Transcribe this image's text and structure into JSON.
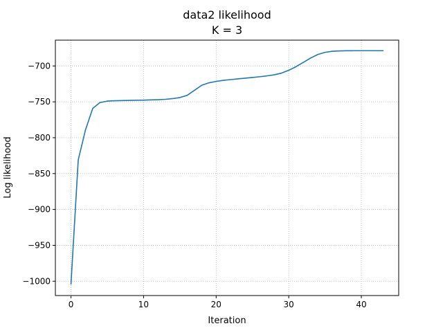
{
  "chart_data": {
    "type": "line",
    "title": "data2 likelihood",
    "subtitle": "K = 3",
    "xlabel": "Iteration",
    "ylabel": "Log likelihood",
    "xlim": [
      -2.15,
      45.15
    ],
    "ylim": [
      -1020,
      -664
    ],
    "xticks": [
      0,
      10,
      20,
      30,
      40
    ],
    "yticks": [
      -1000,
      -950,
      -900,
      -850,
      -800,
      -750,
      -700
    ],
    "xtick_labels": [
      "0",
      "10",
      "20",
      "30",
      "40"
    ],
    "ytick_labels": [
      "−1000",
      "−950",
      "−900",
      "−850",
      "−800",
      "−750",
      "−700"
    ],
    "grid": true,
    "series": [
      {
        "color": "#1f77b4",
        "x": [
          0,
          1,
          2,
          3,
          4,
          5,
          6,
          7,
          8,
          9,
          10,
          11,
          12,
          13,
          14,
          15,
          16,
          17,
          18,
          19,
          20,
          21,
          22,
          23,
          24,
          25,
          26,
          27,
          28,
          29,
          30,
          31,
          32,
          33,
          34,
          35,
          36,
          37,
          38,
          39,
          40,
          41,
          42,
          43
        ],
        "y": [
          -1004,
          -831,
          -789,
          -759,
          -751,
          -749,
          -748.5,
          -748.2,
          -748,
          -747.8,
          -747.6,
          -747.3,
          -747,
          -746.5,
          -745.5,
          -744,
          -741,
          -734,
          -727,
          -723.5,
          -721.5,
          -720,
          -719,
          -718,
          -717,
          -716,
          -715,
          -713.8,
          -712.3,
          -710,
          -706,
          -701,
          -695,
          -689,
          -684,
          -681,
          -679.5,
          -679,
          -678.8,
          -678.7,
          -678.7,
          -678.7,
          -678.7,
          -678.7
        ]
      }
    ]
  }
}
